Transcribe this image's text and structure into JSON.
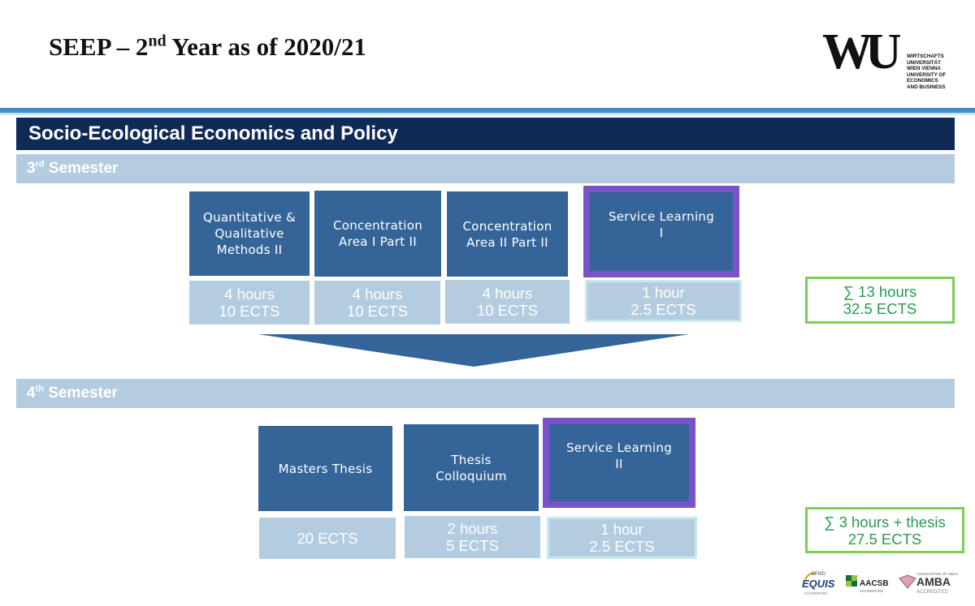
{
  "title": {
    "before": "SEEP – 2",
    "sup": "nd",
    "after": " Year as of 2020/21"
  },
  "logo": {
    "mark": "WU",
    "lines": [
      "WIRTSCHAFTS",
      "UNIVERSITÄT",
      "WIEN VIENNA",
      "UNIVERSITY OF",
      "ECONOMICS",
      "AND BUSINESS"
    ]
  },
  "program": "Socio-Ecological Economics and Policy",
  "semester3": {
    "num": "3",
    "sup": "rd",
    "label": " Semester",
    "courses": [
      {
        "name": "Quantitative &\nQualitative\nMethods II",
        "hours": "4 hours",
        "ects": "10 ECTS"
      },
      {
        "name": "Concentration\nArea I Part II",
        "hours": "4 hours",
        "ects": "10 ECTS"
      },
      {
        "name": "Concentration\nArea II Part II",
        "hours": "4 hours",
        "ects": "10 ECTS"
      },
      {
        "name": "Service Learning\nI",
        "hours": "1 hour",
        "ects": "2.5 ECTS"
      }
    ],
    "sum": {
      "line1": "∑ 13 hours",
      "line2": "32.5 ECTS"
    }
  },
  "semester4": {
    "num": "4",
    "sup": "th",
    "label": " Semester",
    "courses": [
      {
        "name": "Masters Thesis",
        "hours": "20 ECTS"
      },
      {
        "name": "Thesis\nColloquium",
        "hours": "2 hours",
        "ects": "5 ECTS"
      },
      {
        "name": "Service Learning\nII",
        "hours": "1 hour",
        "ects": "2.5 ECTS"
      }
    ],
    "sum": {
      "line1": "∑ 3 hours + thesis",
      "line2": "27.5 ECTS"
    }
  },
  "accreditations": {
    "equis_top": "EFMD",
    "equis": "EQUIS",
    "equis_sub": "ACCREDITED",
    "aacsb": "AACSB",
    "aacsb_sub": "ACCREDITED",
    "amba_top": "ASSOCIATION OF MBAs",
    "amba": "AMBA",
    "amba_sub": "ACCREDITED"
  },
  "colors": {
    "navy": "#102a56",
    "course_blue": "#356598",
    "light_blue": "#b3cce0",
    "service_purple": "#7a52c9",
    "sum_green": "#7ccf55",
    "sum_text": "#2a9a4e",
    "rule_blue": "#3a8fc8"
  }
}
